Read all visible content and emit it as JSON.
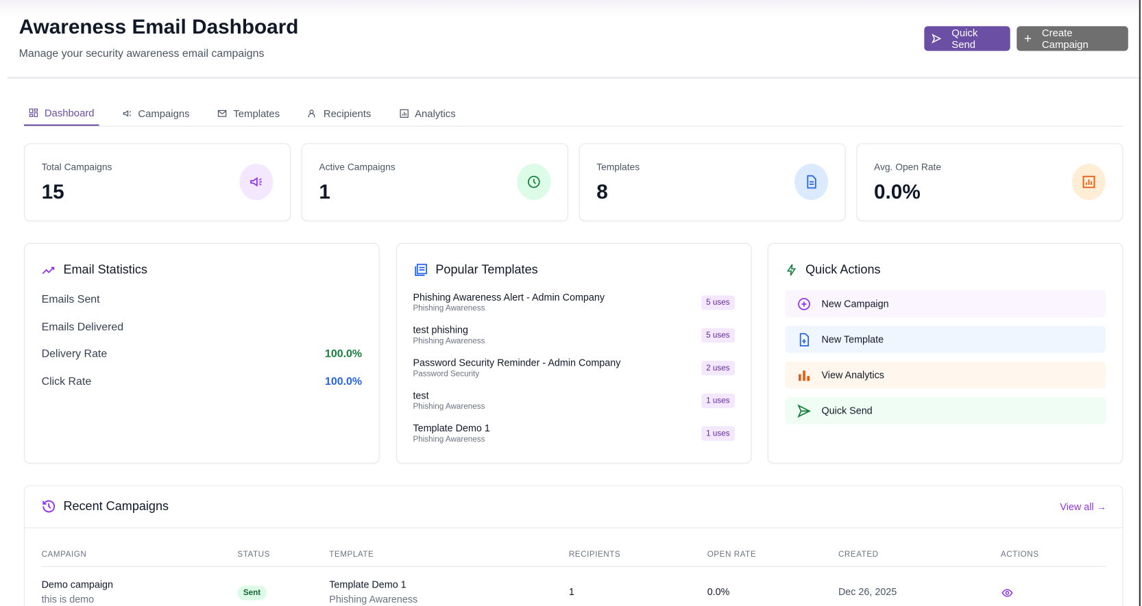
{
  "header": {
    "title": "Awareness Email Dashboard",
    "subtitle": "Manage your security awareness email campaigns",
    "quick_send": "Quick Send",
    "create_campaign": "Create Campaign"
  },
  "tabs": [
    {
      "label": "Dashboard",
      "icon": "dashboard-icon",
      "active": true
    },
    {
      "label": "Campaigns",
      "icon": "megaphone-icon"
    },
    {
      "label": "Templates",
      "icon": "mail-icon"
    },
    {
      "label": "Recipients",
      "icon": "users-icon"
    },
    {
      "label": "Analytics",
      "icon": "chart-icon"
    }
  ],
  "stats": [
    {
      "label": "Total Campaigns",
      "value": "15",
      "icon": "megaphone-icon",
      "color": "#9333ea",
      "bg": "#f3e8ff"
    },
    {
      "label": "Active Campaigns",
      "value": "1",
      "icon": "clock-icon",
      "color": "#15803d",
      "bg": "#dcfce7"
    },
    {
      "label": "Templates",
      "value": "8",
      "icon": "document-icon",
      "color": "#2563eb",
      "bg": "#dbeafe"
    },
    {
      "label": "Avg. Open Rate",
      "value": "0.0%",
      "icon": "bar-chart-icon",
      "color": "#ea580c",
      "bg": "#ffedd5"
    }
  ],
  "email_stats": {
    "title": "Email Statistics",
    "rows": [
      {
        "label": "Emails Sent",
        "value": ""
      },
      {
        "label": "Emails Delivered",
        "value": ""
      },
      {
        "label": "Delivery Rate",
        "value": "100.0%",
        "color": "#15803d"
      },
      {
        "label": "Click Rate",
        "value": "100.0%",
        "color": "#2563eb"
      }
    ]
  },
  "popular_templates": {
    "title": "Popular Templates",
    "items": [
      {
        "name": "Phishing Awareness Alert - Admin Company",
        "category": "Phishing Awareness",
        "uses": "5 uses"
      },
      {
        "name": "test phishing",
        "category": "Phishing Awareness",
        "uses": "5 uses"
      },
      {
        "name": "Password Security Reminder - Admin Company",
        "category": "Password Security",
        "uses": "2 uses"
      },
      {
        "name": "test",
        "category": "Phishing Awareness",
        "uses": "1 uses"
      },
      {
        "name": "Template Demo 1",
        "category": "Phishing Awareness",
        "uses": "1 uses"
      }
    ]
  },
  "quick_actions": {
    "title": "Quick Actions",
    "items": [
      {
        "label": "New Campaign",
        "icon": "plus-circle-icon",
        "bg": "#faf5ff"
      },
      {
        "label": "New Template",
        "icon": "file-plus-icon",
        "bg": "#eff6ff"
      },
      {
        "label": "View Analytics",
        "icon": "bar-chart-icon",
        "bg": "#fff7ed"
      },
      {
        "label": "Quick Send",
        "icon": "send-icon",
        "bg": "#f0fdf4"
      }
    ]
  },
  "recent": {
    "title": "Recent Campaigns",
    "view_all": "View all →",
    "columns": [
      "CAMPAIGN",
      "STATUS",
      "TEMPLATE",
      "RECIPIENTS",
      "OPEN RATE",
      "CREATED",
      "ACTIONS"
    ],
    "rows": [
      {
        "name": "Demo campaign",
        "description": "this is demo",
        "status": "Sent",
        "template": "Template Demo 1",
        "template_category": "Phishing Awareness",
        "recipients": "1",
        "open_rate": "0.0%",
        "created": "Dec 26, 2025"
      }
    ]
  }
}
